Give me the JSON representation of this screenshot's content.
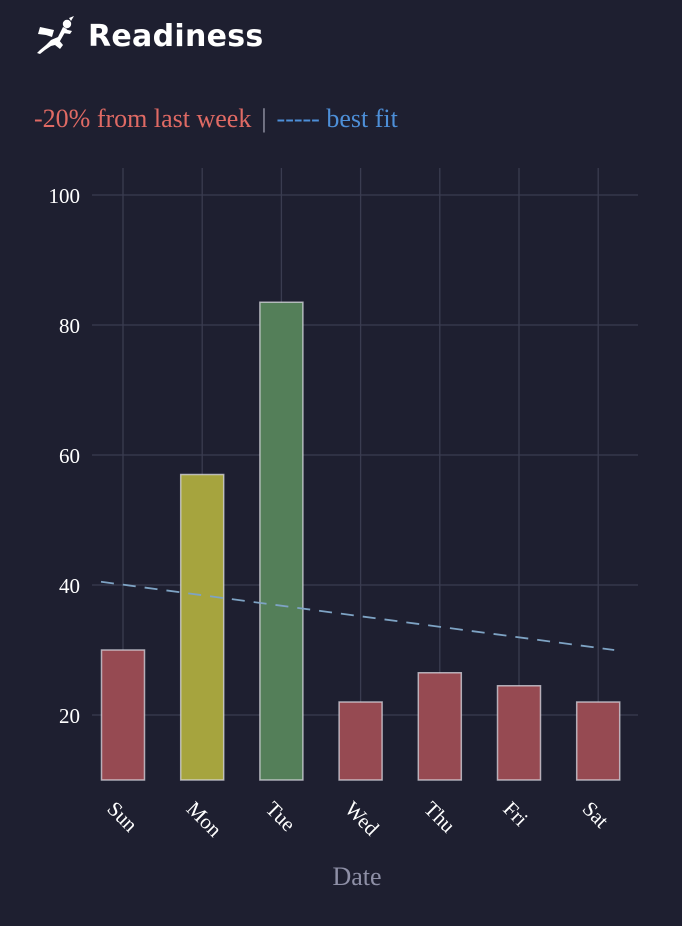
{
  "header": {
    "title": "Readiness",
    "icon": "flying-hero-icon"
  },
  "subtitle": {
    "change": "-20% from last week",
    "separator": "|",
    "fit_label": "----- best fit"
  },
  "colors": {
    "background": "#1e1f30",
    "grid": "#3a3c50",
    "red": "#964a52",
    "yellow": "#a6a43e",
    "green": "#547f59",
    "fit": "#7ea3c4",
    "change_text": "#e06a64",
    "fit_text": "#4d8fd8"
  },
  "chart_data": {
    "type": "bar",
    "title": "Readiness",
    "xlabel": "Date",
    "ylabel": "",
    "categories": [
      "Sun",
      "Mon",
      "Tue",
      "Wed",
      "Thu",
      "Fri",
      "Sat"
    ],
    "values": [
      30,
      57,
      83.5,
      22,
      26.5,
      24.5,
      22
    ],
    "bar_colors": [
      "red",
      "yellow",
      "green",
      "red",
      "red",
      "red",
      "red"
    ],
    "baseline": 10,
    "ylim": [
      10,
      104
    ],
    "yticks": [
      20,
      40,
      60,
      80,
      100
    ],
    "grid": true,
    "best_fit": {
      "start": 40.5,
      "end": 30
    }
  }
}
